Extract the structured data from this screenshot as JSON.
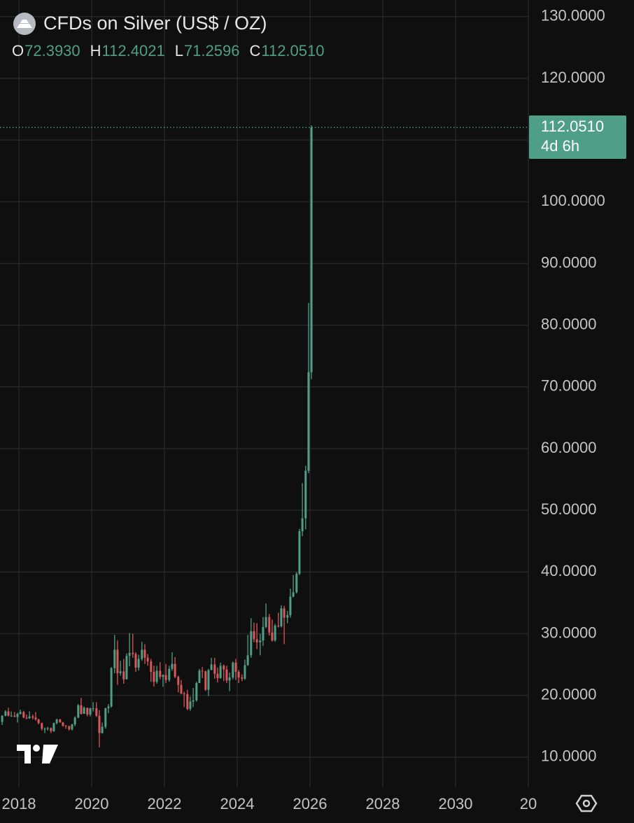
{
  "header": {
    "title": "CFDs on Silver (US$ / OZ)",
    "ohlc": [
      {
        "label": "O",
        "value": "72.3930"
      },
      {
        "label": "H",
        "value": "112.4021"
      },
      {
        "label": "L",
        "value": "71.2596"
      },
      {
        "label": "C",
        "value": "112.0510"
      }
    ]
  },
  "chart_data": {
    "type": "candlestick",
    "up_color": "#4f9e86",
    "down_color": "#d9585c",
    "grid": true,
    "xlim": [
      2017.48,
      2032.0
    ],
    "xticks": [
      2018,
      2020,
      2022,
      2024,
      2026,
      2028,
      2030,
      {
        "value": 2032,
        "label": "20"
      }
    ],
    "ylim": [
      5.1,
      132.7
    ],
    "yticks": [
      {
        "value": 10,
        "label": "10.0000"
      },
      {
        "value": 20,
        "label": "20.0000"
      },
      {
        "value": 30,
        "label": "30.0000"
      },
      {
        "value": 40,
        "label": "40.0000"
      },
      {
        "value": 50,
        "label": "50.0000"
      },
      {
        "value": 60,
        "label": "60.0000"
      },
      {
        "value": 70,
        "label": "70.0000"
      },
      {
        "value": 80,
        "label": "80.0000"
      },
      {
        "value": 90,
        "label": "90.0000"
      },
      {
        "value": 100,
        "label": "100.0000"
      },
      {
        "value": 110,
        "label": "110.0000"
      },
      {
        "value": 120,
        "label": "120.0000"
      },
      {
        "value": 130,
        "label": "130.0000"
      }
    ],
    "last_price": {
      "value": 112.051,
      "label": "112.0510",
      "countdown": "4d 6h"
    },
    "x": [
      2017.54,
      2017.63,
      2017.71,
      2017.79,
      2017.88,
      2017.96,
      2018.04,
      2018.13,
      2018.21,
      2018.29,
      2018.38,
      2018.46,
      2018.54,
      2018.63,
      2018.71,
      2018.79,
      2018.88,
      2018.96,
      2019.04,
      2019.13,
      2019.21,
      2019.29,
      2019.38,
      2019.46,
      2019.54,
      2019.63,
      2019.71,
      2019.79,
      2019.88,
      2019.96,
      2020.04,
      2020.13,
      2020.21,
      2020.29,
      2020.38,
      2020.46,
      2020.54,
      2020.63,
      2020.71,
      2020.79,
      2020.88,
      2020.96,
      2021.04,
      2021.13,
      2021.21,
      2021.29,
      2021.38,
      2021.46,
      2021.54,
      2021.63,
      2021.71,
      2021.79,
      2021.88,
      2021.96,
      2022.04,
      2022.13,
      2022.21,
      2022.29,
      2022.38,
      2022.46,
      2022.54,
      2022.63,
      2022.71,
      2022.79,
      2022.88,
      2022.96,
      2023.04,
      2023.13,
      2023.21,
      2023.29,
      2023.38,
      2023.46,
      2023.54,
      2023.63,
      2023.71,
      2023.79,
      2023.88,
      2023.96,
      2024.04,
      2024.13,
      2024.21,
      2024.29,
      2024.38,
      2024.46,
      2024.54,
      2024.63,
      2024.71,
      2024.79,
      2024.88,
      2024.96,
      2025.04,
      2025.13,
      2025.21,
      2025.29,
      2025.38,
      2025.46,
      2025.54,
      2025.63,
      2025.71,
      2025.79,
      2025.88,
      2025.96,
      2026.04
    ],
    "open": [
      15.7,
      16.7,
      17.4,
      16.7,
      16.7,
      16.5,
      17.0,
      17.3,
      16.4,
      16.3,
      16.6,
      16.4,
      16.1,
      15.5,
      14.6,
      14.6,
      14.7,
      14.2,
      15.5,
      16.1,
      15.6,
      15.1,
      15.0,
      14.5,
      15.3,
      16.4,
      18.4,
      17.0,
      18.0,
      16.9,
      17.9,
      17.9,
      16.7,
      13.9,
      14.9,
      17.9,
      18.2,
      24.4,
      27.4,
      23.6,
      23.9,
      22.6,
      26.4,
      26.9,
      26.7,
      24.5,
      25.9,
      27.4,
      26.1,
      25.5,
      23.8,
      22.2,
      24.0,
      23.0,
      23.3,
      22.5,
      24.3,
      25.1,
      23.0,
      21.7,
      20.3,
      20.2,
      17.8,
      19.0,
      19.2,
      22.0,
      24.0,
      23.9,
      20.9,
      24.1,
      25.0,
      23.5,
      22.8,
      24.8,
      24.2,
      22.4,
      22.9,
      25.3,
      23.8,
      22.9,
      22.7,
      24.9,
      26.5,
      30.4,
      29.1,
      28.6,
      28.9,
      31.1,
      32.7,
      30.2,
      28.9,
      31.3,
      31.2,
      34.1,
      32.6,
      33.0,
      36.0,
      36.7,
      39.7,
      46.6,
      48.7,
      56.4,
      72.393
    ],
    "high": [
      16.8,
      17.6,
      18.0,
      17.4,
      17.3,
      17.2,
      17.7,
      17.5,
      16.9,
      17.4,
      16.9,
      17.3,
      16.2,
      15.6,
      14.8,
      14.9,
      14.8,
      15.6,
      16.2,
      16.2,
      15.7,
      15.2,
      15.1,
      15.4,
      16.6,
      18.6,
      19.6,
      18.2,
      18.0,
      18.0,
      18.9,
      18.9,
      17.6,
      15.6,
      18.0,
      18.6,
      24.6,
      29.8,
      28.9,
      25.6,
      25.9,
      26.8,
      30.1,
      30.0,
      27.0,
      26.6,
      28.7,
      28.3,
      26.7,
      25.9,
      24.8,
      24.8,
      25.4,
      23.4,
      25.1,
      24.8,
      27.0,
      26.2,
      23.2,
      22.5,
      20.6,
      20.9,
      19.8,
      21.2,
      22.2,
      24.3,
      24.6,
      24.0,
      24.3,
      26.1,
      26.1,
      24.5,
      25.3,
      25.0,
      24.8,
      23.7,
      25.5,
      25.9,
      24.1,
      23.4,
      25.8,
      29.8,
      32.5,
      31.8,
      31.7,
      30.0,
      32.7,
      34.9,
      33.2,
      32.3,
      31.6,
      33.4,
      34.6,
      34.5,
      33.7,
      37.3,
      39.5,
      40.0,
      47.0,
      54.4,
      57.2,
      83.6,
      112.4021
    ],
    "low": [
      15.2,
      16.6,
      16.6,
      16.5,
      16.5,
      15.6,
      16.9,
      16.3,
      16.1,
      16.2,
      16.1,
      15.9,
      15.3,
      14.3,
      13.9,
      14.3,
      13.9,
      14.1,
      15.3,
      15.6,
      14.9,
      14.6,
      14.3,
      14.3,
      15.0,
      16.3,
      16.9,
      17.0,
      16.6,
      16.6,
      17.4,
      16.5,
      11.6,
      13.8,
      14.6,
      17.1,
      18.0,
      23.6,
      21.7,
      23.2,
      21.9,
      22.6,
      24.7,
      26.1,
      23.8,
      24.0,
      25.6,
      25.1,
      24.8,
      22.2,
      21.4,
      21.9,
      22.6,
      21.4,
      22.0,
      22.2,
      24.0,
      22.8,
      20.5,
      20.2,
      18.1,
      17.6,
      17.5,
      18.1,
      19.0,
      22.0,
      22.8,
      20.7,
      19.9,
      24.1,
      22.7,
      22.1,
      22.7,
      22.3,
      22.0,
      20.7,
      22.6,
      22.5,
      22.0,
      22.3,
      22.5,
      24.8,
      26.1,
      28.6,
      27.5,
      26.5,
      28.0,
      30.9,
      29.7,
      28.7,
      28.7,
      31.0,
      31.0,
      28.3,
      31.7,
      32.6,
      35.9,
      36.5,
      39.5,
      45.8,
      46.9,
      56.0,
      71.2596
    ],
    "close": [
      16.7,
      17.4,
      16.7,
      16.7,
      16.5,
      17.0,
      17.3,
      16.4,
      16.3,
      16.6,
      16.4,
      16.1,
      15.5,
      14.6,
      14.6,
      14.7,
      14.2,
      15.5,
      16.1,
      15.6,
      15.1,
      15.0,
      14.5,
      15.3,
      16.4,
      18.4,
      17.0,
      18.0,
      16.9,
      17.9,
      17.9,
      16.7,
      13.9,
      14.9,
      17.9,
      18.2,
      24.4,
      27.4,
      23.6,
      23.9,
      22.6,
      26.4,
      26.9,
      26.7,
      24.5,
      25.9,
      27.4,
      26.1,
      25.5,
      23.8,
      22.2,
      24.0,
      23.0,
      23.3,
      22.5,
      24.3,
      25.1,
      23.0,
      21.7,
      20.3,
      20.2,
      17.8,
      19.0,
      19.2,
      22.0,
      24.0,
      23.9,
      20.9,
      24.1,
      25.0,
      23.5,
      22.8,
      24.8,
      24.2,
      22.4,
      22.9,
      25.3,
      23.8,
      22.9,
      22.7,
      24.9,
      26.5,
      30.4,
      29.1,
      28.6,
      28.9,
      31.1,
      32.7,
      30.2,
      28.9,
      31.3,
      31.2,
      34.1,
      32.6,
      33.0,
      36.0,
      36.7,
      39.7,
      46.6,
      48.7,
      56.4,
      72.4,
      112.051
    ]
  }
}
